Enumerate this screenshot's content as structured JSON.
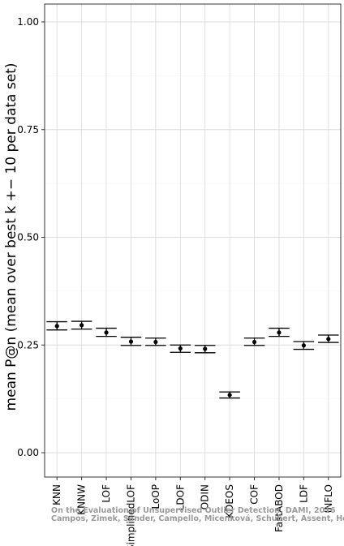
{
  "chart_data": {
    "type": "scatter",
    "ylabel": "mean P@n (mean over best k +− 10 per data set)",
    "ylim": [
      0,
      1.0
    ],
    "yticks": [
      "0.00",
      "0.25",
      "0.50",
      "0.75",
      "1.00"
    ],
    "grid": true,
    "categories": [
      "KNN",
      "KNNW",
      "LOF",
      "SimplifiedLOF",
      "LoOP",
      "LDOF",
      "ODIN",
      "KDEOS",
      "COF",
      "FastABOD",
      "LDF",
      "INFLO"
    ],
    "series": [
      {
        "values": [
          0.294,
          0.296,
          0.279,
          0.258,
          0.257,
          0.242,
          0.241,
          0.134,
          0.257,
          0.279,
          0.249,
          0.264
        ],
        "error_low": [
          0.285,
          0.287,
          0.27,
          0.249,
          0.249,
          0.233,
          0.232,
          0.127,
          0.249,
          0.27,
          0.24,
          0.256
        ],
        "error_high": [
          0.304,
          0.305,
          0.289,
          0.268,
          0.266,
          0.25,
          0.249,
          0.141,
          0.266,
          0.289,
          0.258,
          0.273
        ]
      }
    ],
    "watermark": [
      "On the Evaluation of Unsupervised Outlier Detection, DAMI, 2016",
      "Campos, Zimek, Sander, Campello, Micenková, Schubert, Assent, Houle"
    ]
  }
}
